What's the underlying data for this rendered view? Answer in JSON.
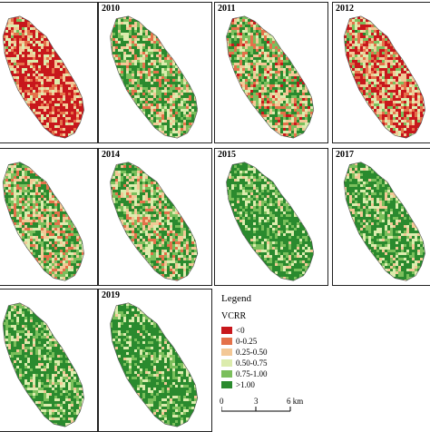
{
  "panels": [
    {
      "label": "",
      "bias": 0.15
    },
    {
      "label": "2010",
      "bias": 0.55
    },
    {
      "label": "2011",
      "bias": 0.45
    },
    {
      "label": "2012",
      "bias": 0.3
    },
    {
      "label": "",
      "bias": 0.5
    },
    {
      "label": "2014",
      "bias": 0.55
    },
    {
      "label": "2015",
      "bias": 0.75
    },
    {
      "label": "2017",
      "bias": 0.7
    },
    {
      "label": "",
      "bias": 0.72
    },
    {
      "label": "2019",
      "bias": 0.78
    }
  ],
  "legend": {
    "title": "Legend",
    "subtitle": "VCRR",
    "classes": [
      {
        "label": "<0",
        "color": "#c8171c"
      },
      {
        "label": "0-0.25",
        "color": "#e4714a"
      },
      {
        "label": "0.25-0.50",
        "color": "#f3c896"
      },
      {
        "label": "0.50-0.75",
        "color": "#dcecad"
      },
      {
        "label": "0.75-1.00",
        "color": "#7bbf5c"
      },
      {
        "label": ">1.00",
        "color": "#2a8a2e"
      }
    ]
  },
  "scale": {
    "ticks": [
      "0",
      "3",
      "6 km"
    ]
  }
}
